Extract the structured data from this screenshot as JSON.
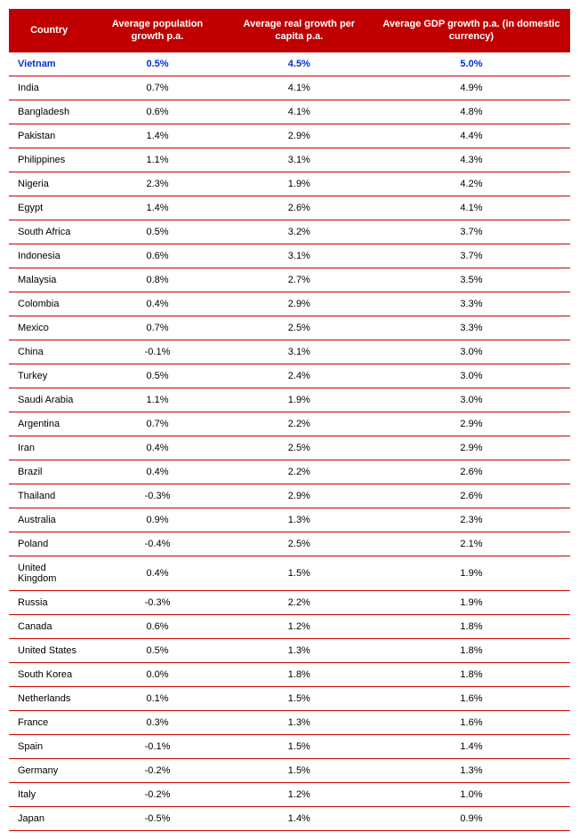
{
  "table": {
    "columns": [
      "Country",
      "Average population growth p.a.",
      "Average real growth per capita p.a.",
      "Average GDP growth p.a. (in domestic currency)"
    ],
    "header_bg": "#c00000",
    "header_color": "#ffffff",
    "row_border_color": "#c00000",
    "highlight_color": "#0033cc",
    "text_color": "#000000",
    "font_size": 11,
    "rows": [
      {
        "country": "Vietnam",
        "pop": "0.5%",
        "real": "4.5%",
        "gdp": "5.0%",
        "highlight": true
      },
      {
        "country": "India",
        "pop": "0.7%",
        "real": "4.1%",
        "gdp": "4.9%",
        "highlight": false
      },
      {
        "country": "Bangladesh",
        "pop": "0.6%",
        "real": "4.1%",
        "gdp": "4.8%",
        "highlight": false
      },
      {
        "country": "Pakistan",
        "pop": "1.4%",
        "real": "2.9%",
        "gdp": "4.4%",
        "highlight": false
      },
      {
        "country": "Philippines",
        "pop": "1.1%",
        "real": "3.1%",
        "gdp": "4.3%",
        "highlight": false
      },
      {
        "country": "Nigeria",
        "pop": "2.3%",
        "real": "1.9%",
        "gdp": "4.2%",
        "highlight": false
      },
      {
        "country": "Egypt",
        "pop": "1.4%",
        "real": "2.6%",
        "gdp": "4.1%",
        "highlight": false
      },
      {
        "country": "South Africa",
        "pop": "0.5%",
        "real": "3.2%",
        "gdp": "3.7%",
        "highlight": false
      },
      {
        "country": "Indonesia",
        "pop": "0.6%",
        "real": "3.1%",
        "gdp": "3.7%",
        "highlight": false
      },
      {
        "country": "Malaysia",
        "pop": "0.8%",
        "real": "2.7%",
        "gdp": "3.5%",
        "highlight": false
      },
      {
        "country": "Colombia",
        "pop": "0.4%",
        "real": "2.9%",
        "gdp": "3.3%",
        "highlight": false
      },
      {
        "country": "Mexico",
        "pop": "0.7%",
        "real": "2.5%",
        "gdp": "3.3%",
        "highlight": false
      },
      {
        "country": "China",
        "pop": "-0.1%",
        "real": "3.1%",
        "gdp": "3.0%",
        "highlight": false
      },
      {
        "country": "Turkey",
        "pop": "0.5%",
        "real": "2.4%",
        "gdp": "3.0%",
        "highlight": false
      },
      {
        "country": "Saudi Arabia",
        "pop": "1.1%",
        "real": "1.9%",
        "gdp": "3.0%",
        "highlight": false
      },
      {
        "country": "Argentina",
        "pop": "0.7%",
        "real": "2.2%",
        "gdp": "2.9%",
        "highlight": false
      },
      {
        "country": "Iran",
        "pop": "0.4%",
        "real": "2.5%",
        "gdp": "2.9%",
        "highlight": false
      },
      {
        "country": "Brazil",
        "pop": "0.4%",
        "real": "2.2%",
        "gdp": "2.6%",
        "highlight": false
      },
      {
        "country": "Thailand",
        "pop": "-0.3%",
        "real": "2.9%",
        "gdp": "2.6%",
        "highlight": false
      },
      {
        "country": "Australia",
        "pop": "0.9%",
        "real": "1.3%",
        "gdp": "2.3%",
        "highlight": false
      },
      {
        "country": "Poland",
        "pop": "-0.4%",
        "real": "2.5%",
        "gdp": "2.1%",
        "highlight": false
      },
      {
        "country": "United Kingdom",
        "pop": "0.4%",
        "real": "1.5%",
        "gdp": "1.9%",
        "highlight": false
      },
      {
        "country": "Russia",
        "pop": "-0.3%",
        "real": "2.2%",
        "gdp": "1.9%",
        "highlight": false
      },
      {
        "country": "Canada",
        "pop": "0.6%",
        "real": "1.2%",
        "gdp": "1.8%",
        "highlight": false
      },
      {
        "country": "United States",
        "pop": "0.5%",
        "real": "1.3%",
        "gdp": "1.8%",
        "highlight": false
      },
      {
        "country": "South Korea",
        "pop": "0.0%",
        "real": "1.8%",
        "gdp": "1.8%",
        "highlight": false
      },
      {
        "country": "Netherlands",
        "pop": "0.1%",
        "real": "1.5%",
        "gdp": "1.6%",
        "highlight": false
      },
      {
        "country": "France",
        "pop": "0.3%",
        "real": "1.3%",
        "gdp": "1.6%",
        "highlight": false
      },
      {
        "country": "Spain",
        "pop": "-0.1%",
        "real": "1.5%",
        "gdp": "1.4%",
        "highlight": false
      },
      {
        "country": "Germany",
        "pop": "-0.2%",
        "real": "1.5%",
        "gdp": "1.3%",
        "highlight": false
      },
      {
        "country": "Italy",
        "pop": "-0.2%",
        "real": "1.2%",
        "gdp": "1.0%",
        "highlight": false
      },
      {
        "country": "Japan",
        "pop": "-0.5%",
        "real": "1.4%",
        "gdp": "0.9%",
        "highlight": false
      }
    ]
  }
}
